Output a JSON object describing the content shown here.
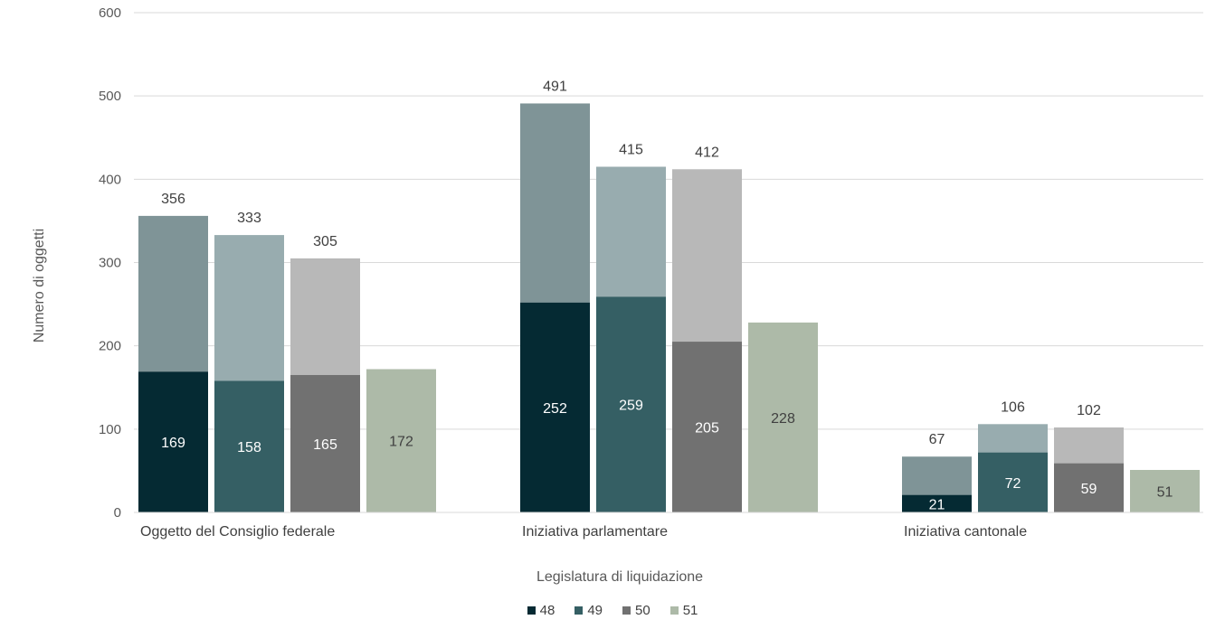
{
  "chart_data": {
    "type": "bar",
    "stacked_partial": true,
    "ylabel": "Numero di oggetti",
    "xlabel": "Legislatura di liquidazione",
    "ylim": [
      0,
      600
    ],
    "yticks": [
      0,
      100,
      200,
      300,
      400,
      500,
      600
    ],
    "grid": true,
    "legend_position": "bottom",
    "categories": [
      "Oggetto del Consiglio federale",
      "Iniziativa parlamentare",
      "Iniziativa cantonale"
    ],
    "series": [
      {
        "name": "48",
        "color": "#052a33",
        "overlay_color": "#7f9497",
        "base": [
          169,
          252,
          21
        ],
        "total": [
          356,
          491,
          67
        ]
      },
      {
        "name": "49",
        "color": "#355f64",
        "overlay_color": "#98acaf",
        "base": [
          158,
          259,
          72
        ],
        "total": [
          333,
          415,
          106
        ]
      },
      {
        "name": "50",
        "color": "#717171",
        "overlay_color": "#b8b8b8",
        "base": [
          165,
          205,
          59
        ],
        "total": [
          305,
          412,
          102
        ]
      },
      {
        "name": "51",
        "color": "#adbaa8",
        "overlay_color": "#adbaa8",
        "base": [
          172,
          228,
          51
        ],
        "total": [
          null,
          null,
          null
        ]
      }
    ]
  }
}
